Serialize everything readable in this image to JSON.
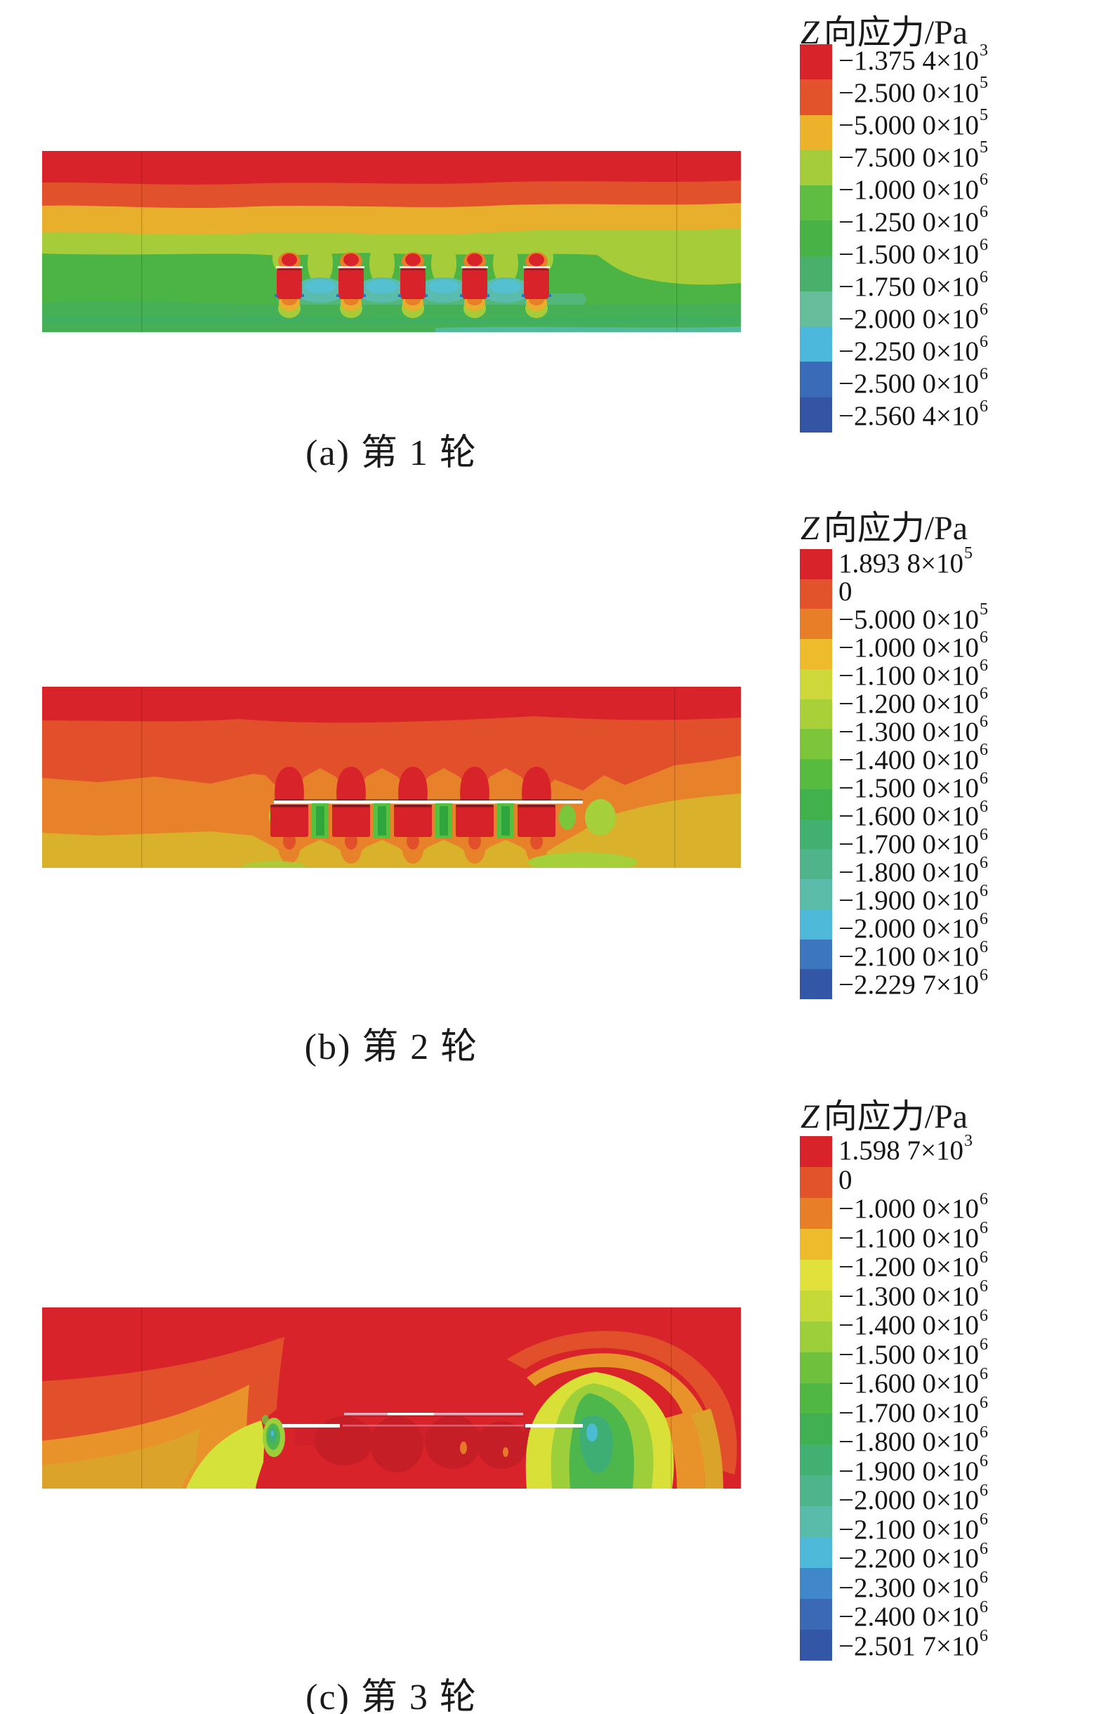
{
  "figure": {
    "panels": [
      {
        "id": "a",
        "caption": "(a) 第 1 轮",
        "legend": {
          "title_var": "Z",
          "title_rest": "向应力/Pa",
          "entries": [
            {
              "base": "−1.375 4×10",
              "sup": "3"
            },
            {
              "base": "−2.500 0×10",
              "sup": "5"
            },
            {
              "base": "−5.000 0×10",
              "sup": "5"
            },
            {
              "base": "−7.500 0×10",
              "sup": "5"
            },
            {
              "base": "−1.000 0×10",
              "sup": "6"
            },
            {
              "base": "−1.250 0×10",
              "sup": "6"
            },
            {
              "base": "−1.500 0×10",
              "sup": "6"
            },
            {
              "base": "−1.750 0×10",
              "sup": "6"
            },
            {
              "base": "−2.000 0×10",
              "sup": "6"
            },
            {
              "base": "−2.250 0×10",
              "sup": "6"
            },
            {
              "base": "−2.500 0×10",
              "sup": "6"
            },
            {
              "base": "−2.560 4×10",
              "sup": "6"
            }
          ],
          "colors": [
            "#D8232B",
            "#E2532B",
            "#EDB22B",
            "#A5CC3A",
            "#5FBD41",
            "#48B247",
            "#49B06C",
            "#65BD9B",
            "#4CB9DC",
            "#3A6BB8",
            "#3454A4"
          ]
        }
      },
      {
        "id": "b",
        "caption": "(b) 第 2 轮",
        "legend": {
          "title_var": "Z",
          "title_rest": "向应力/Pa",
          "entries": [
            {
              "base": "1.893 8×10",
              "sup": "5"
            },
            {
              "base": "0",
              "sup": null
            },
            {
              "base": "−5.000 0×10",
              "sup": "5"
            },
            {
              "base": "−1.000 0×10",
              "sup": "6"
            },
            {
              "base": "−1.100 0×10",
              "sup": "6"
            },
            {
              "base": "−1.200 0×10",
              "sup": "6"
            },
            {
              "base": "−1.300 0×10",
              "sup": "6"
            },
            {
              "base": "−1.400 0×10",
              "sup": "6"
            },
            {
              "base": "−1.500 0×10",
              "sup": "6"
            },
            {
              "base": "−1.600 0×10",
              "sup": "6"
            },
            {
              "base": "−1.700 0×10",
              "sup": "6"
            },
            {
              "base": "−1.800 0×10",
              "sup": "6"
            },
            {
              "base": "−1.900 0×10",
              "sup": "6"
            },
            {
              "base": "−2.000 0×10",
              "sup": "6"
            },
            {
              "base": "−2.100 0×10",
              "sup": "6"
            },
            {
              "base": "−2.229 7×10",
              "sup": "6"
            }
          ],
          "colors": [
            "#D8232B",
            "#E2532B",
            "#E97E28",
            "#EDBB2B",
            "#CED83A",
            "#A9D039",
            "#7DC63C",
            "#57BB40",
            "#40B14B",
            "#42B06F",
            "#4FB48A",
            "#5BBDA9",
            "#4EB9D8",
            "#3B76BE",
            "#3456A7"
          ]
        }
      },
      {
        "id": "c",
        "caption": "(c) 第 3 轮",
        "legend": {
          "title_var": "Z",
          "title_rest": "向应力/Pa",
          "entries": [
            {
              "base": "1.598 7×10",
              "sup": "3"
            },
            {
              "base": "0",
              "sup": null
            },
            {
              "base": "−1.000 0×10",
              "sup": "6"
            },
            {
              "base": "−1.100 0×10",
              "sup": "6"
            },
            {
              "base": "−1.200 0×10",
              "sup": "6"
            },
            {
              "base": "−1.300 0×10",
              "sup": "6"
            },
            {
              "base": "−1.400 0×10",
              "sup": "6"
            },
            {
              "base": "−1.500 0×10",
              "sup": "6"
            },
            {
              "base": "−1.600 0×10",
              "sup": "6"
            },
            {
              "base": "−1.700 0×10",
              "sup": "6"
            },
            {
              "base": "−1.800 0×10",
              "sup": "6"
            },
            {
              "base": "−1.900 0×10",
              "sup": "6"
            },
            {
              "base": "−2.000 0×10",
              "sup": "6"
            },
            {
              "base": "−2.100 0×10",
              "sup": "6"
            },
            {
              "base": "−2.200 0×10",
              "sup": "6"
            },
            {
              "base": "−2.300 0×10",
              "sup": "6"
            },
            {
              "base": "−2.400 0×10",
              "sup": "6"
            },
            {
              "base": "−2.501 7×10",
              "sup": "6"
            }
          ],
          "colors": [
            "#D8232B",
            "#E2532B",
            "#E97E28",
            "#EDBB2B",
            "#E2E13C",
            "#C5DA39",
            "#9DCF3A",
            "#6FC03D",
            "#4FB742",
            "#40B053",
            "#42B071",
            "#4EB48C",
            "#59BCAB",
            "#4EB9D8",
            "#4088C9",
            "#3B69B5",
            "#3456A6"
          ]
        }
      }
    ]
  },
  "chart_data": [
    {
      "type": "heatmap",
      "title": "(a) 第 1 轮",
      "legend_title": "Z 向应力/Pa",
      "unit": "Pa",
      "field": "Z-direction stress contour, 5 bolts in cross-section",
      "max": -1375.4,
      "min": -2560400,
      "levels": [
        -1375.4,
        -250000,
        -500000,
        -750000,
        -1000000,
        -1250000,
        -1500000,
        -1750000,
        -2000000,
        -2250000,
        -2500000,
        -2560400
      ],
      "level_labels": [
        "−1.375 4×10³",
        "−2.500 0×10⁵",
        "−5.000 0×10⁵",
        "−7.500 0×10⁵",
        "−1.000 0×10⁶",
        "−1.250 0×10⁶",
        "−1.500 0×10⁶",
        "−1.750 0×10⁶",
        "−2.000 0×10⁶",
        "−2.250 0×10⁶",
        "−2.500 0×10⁶",
        "−2.560 4×10⁶"
      ],
      "colors": [
        "#D8232B",
        "#E2532B",
        "#EDB22B",
        "#A5CC3A",
        "#5FBD41",
        "#48B247",
        "#49B06C",
        "#65BD9B",
        "#4CB9DC",
        "#3A6BB8",
        "#3454A4"
      ],
      "legend_position": "right"
    },
    {
      "type": "heatmap",
      "title": "(b) 第 2 轮",
      "legend_title": "Z 向应力/Pa",
      "unit": "Pa",
      "field": "Z-direction stress contour, 5 bolts in cross-section",
      "max": 189380,
      "min": -2229700,
      "levels": [
        189380,
        0,
        -500000,
        -1000000,
        -1100000,
        -1200000,
        -1300000,
        -1400000,
        -1500000,
        -1600000,
        -1700000,
        -1800000,
        -1900000,
        -2000000,
        -2100000,
        -2229700
      ],
      "level_labels": [
        "1.893 8×10⁵",
        "0",
        "−5.000 0×10⁵",
        "−1.000 0×10⁶",
        "−1.100 0×10⁶",
        "−1.200 0×10⁶",
        "−1.300 0×10⁶",
        "−1.400 0×10⁶",
        "−1.500 0×10⁶",
        "−1.600 0×10⁶",
        "−1.700 0×10⁶",
        "−1.800 0×10⁶",
        "−1.900 0×10⁶",
        "−2.000 0×10⁶",
        "−2.100 0×10⁶",
        "−2.229 7×10⁶"
      ],
      "colors": [
        "#D8232B",
        "#E2532B",
        "#E97E28",
        "#EDBB2B",
        "#CED83A",
        "#A9D039",
        "#7DC63C",
        "#57BB40",
        "#40B14B",
        "#42B06F",
        "#4FB48A",
        "#5BBDA9",
        "#4EB9D8",
        "#3B76BE",
        "#3456A7"
      ],
      "legend_position": "right"
    },
    {
      "type": "heatmap",
      "title": "(c) 第 3 轮",
      "legend_title": "Z 向应力/Pa",
      "unit": "Pa",
      "field": "Z-direction stress contour, anchored section with stress concentration plumes",
      "max": 1598.7,
      "min": -2501700,
      "levels": [
        1598.7,
        0,
        -1000000,
        -1100000,
        -1200000,
        -1300000,
        -1400000,
        -1500000,
        -1600000,
        -1700000,
        -1800000,
        -1900000,
        -2000000,
        -2100000,
        -2200000,
        -2300000,
        -2400000,
        -2501700
      ],
      "level_labels": [
        "1.598 7×10³",
        "0",
        "−1.000 0×10⁶",
        "−1.100 0×10⁶",
        "−1.200 0×10⁶",
        "−1.300 0×10⁶",
        "−1.400 0×10⁶",
        "−1.500 0×10⁶",
        "−1.600 0×10⁶",
        "−1.700 0×10⁶",
        "−1.800 0×10⁶",
        "−1.900 0×10⁶",
        "−2.000 0×10⁶",
        "−2.100 0×10⁶",
        "−2.200 0×10⁶",
        "−2.300 0×10⁶",
        "−2.400 0×10⁶",
        "−2.501 7×10⁶"
      ],
      "colors": [
        "#D8232B",
        "#E2532B",
        "#E97E28",
        "#EDBB2B",
        "#E2E13C",
        "#C5DA39",
        "#9DCF3A",
        "#6FC03D",
        "#4FB742",
        "#40B053",
        "#42B071",
        "#4EB48C",
        "#59BCAB",
        "#4EB9D8",
        "#4088C9",
        "#3B69B5",
        "#3456A6"
      ],
      "legend_position": "right"
    }
  ]
}
